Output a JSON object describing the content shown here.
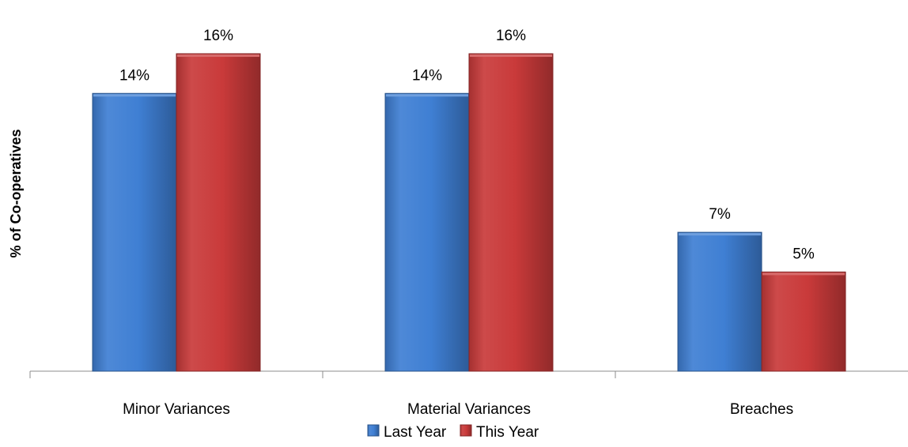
{
  "chart_data": {
    "type": "bar",
    "title": "",
    "xlabel": "",
    "ylabel": "% of  Co-operatives",
    "categories": [
      "Minor Variances",
      "Material Variances",
      "Breaches"
    ],
    "series": [
      {
        "name": "Last Year",
        "values": [
          14,
          14,
          7
        ],
        "labels": [
          "14%",
          "14%",
          "7%"
        ],
        "color": "#3f7fd3"
      },
      {
        "name": "This Year",
        "values": [
          16,
          16,
          5
        ],
        "labels": [
          "16%",
          "16%",
          "5%"
        ],
        "color": "#c93a3a"
      }
    ],
    "ylim": [
      0,
      16
    ],
    "grid": false,
    "legend_position": "bottom"
  }
}
